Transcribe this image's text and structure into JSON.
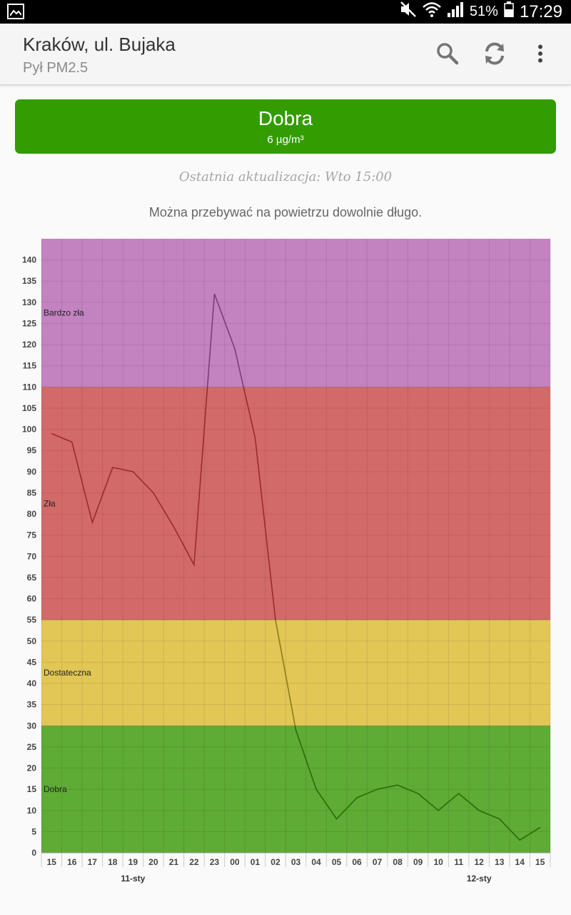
{
  "status_bar": {
    "battery_percent": "51%",
    "time": "17:29",
    "icons": [
      "gallery-icon",
      "mute-icon",
      "wifi-icon",
      "signal-icon",
      "battery-icon"
    ]
  },
  "app_bar": {
    "title": "Kraków, ul. Bujaka",
    "subtitle": "Pył PM2.5",
    "icons": [
      "search-icon",
      "refresh-icon",
      "more-vert-icon"
    ]
  },
  "current": {
    "level": "Dobra",
    "value": "6 µg/m³",
    "color": "#339c00"
  },
  "last_update": "Ostatnia aktualizacja: Wto 15:00",
  "advice": "Można przebywać na powietrzu dowolnie długo.",
  "chart_data": {
    "type": "line",
    "categories": [
      "15",
      "16",
      "17",
      "18",
      "19",
      "20",
      "21",
      "22",
      "23",
      "00",
      "01",
      "02",
      "03",
      "04",
      "05",
      "06",
      "07",
      "08",
      "09",
      "10",
      "11",
      "12",
      "13",
      "14",
      "15"
    ],
    "values": [
      99,
      97,
      78,
      91,
      90,
      85,
      77,
      68,
      132,
      119,
      98,
      55,
      29,
      15,
      8,
      13,
      15,
      16,
      14,
      10,
      14,
      10,
      8,
      3,
      6
    ],
    "ylim": [
      0,
      145
    ],
    "yticks": [
      0,
      5,
      10,
      15,
      20,
      25,
      30,
      35,
      40,
      45,
      50,
      55,
      60,
      65,
      70,
      75,
      80,
      85,
      90,
      95,
      100,
      105,
      110,
      115,
      120,
      125,
      130,
      135,
      140
    ],
    "grid": true,
    "date_labels": [
      {
        "label": "11-sty",
        "at_category": 4
      },
      {
        "label": "12-sty",
        "at_category": 21
      }
    ],
    "bands": [
      {
        "label": "Dobra",
        "from": 0,
        "to": 30,
        "color": "#5eab35",
        "line_color": "#2d6a0a"
      },
      {
        "label": "Dostateczna",
        "from": 30,
        "to": 55,
        "color": "#e2c656",
        "line_color": "#8a7d1a"
      },
      {
        "label": "Zła",
        "from": 55,
        "to": 110,
        "color": "#d36a6a",
        "line_color": "#9a2b2b"
      },
      {
        "label": "Bardzo zła",
        "from": 110,
        "to": 145,
        "color": "#c283c0",
        "line_color": "#7b3d7b"
      }
    ]
  }
}
